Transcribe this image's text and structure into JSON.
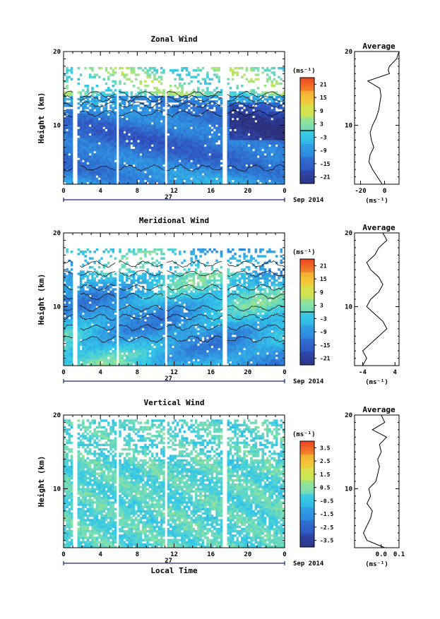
{
  "chart_data": [
    {
      "type": "heatmap",
      "title": "Zonal Wind",
      "ylabel": "Height (km)",
      "ylim": [
        2,
        20
      ],
      "y_ticks": [
        "10",
        "20"
      ],
      "xlim": [
        0,
        24
      ],
      "x_ticks": [
        "0",
        "4",
        "8",
        "12",
        "16",
        "20",
        "0"
      ],
      "date_day": "27",
      "date_month": "Sep 2014",
      "unit": "(ms⁻¹)",
      "colorbar_ticks": [
        "21",
        "15",
        "9",
        "3",
        "-3",
        "-9",
        "-15",
        "-21"
      ],
      "colorbar_range": [
        -24,
        24
      ],
      "contour_level": 0,
      "profile": {
        "title": "Average",
        "xlim": [
          -25,
          12
        ],
        "x_ticks": [
          "-20",
          "0"
        ],
        "xlabel": "(ms⁻¹)",
        "height": [
          2,
          3,
          4,
          5,
          6,
          7,
          8,
          9,
          10,
          11,
          12,
          13,
          14,
          15,
          16,
          17,
          17.5,
          18,
          19,
          20
        ],
        "value": [
          -2,
          -6,
          -10,
          -13,
          -12,
          -9,
          -11,
          -12,
          -10,
          -7,
          -5,
          -4,
          -3,
          -4,
          -14,
          4,
          3,
          4,
          10,
          12
        ]
      }
    },
    {
      "type": "heatmap",
      "title": "Meridional Wind",
      "ylabel": "Height (km)",
      "ylim": [
        2,
        20
      ],
      "y_ticks": [
        "10",
        "20"
      ],
      "xlim": [
        0,
        24
      ],
      "x_ticks": [
        "0",
        "4",
        "8",
        "12",
        "16",
        "20",
        "0"
      ],
      "date_day": "27",
      "date_month": "Sep 2014",
      "unit": "(ms⁻¹)",
      "colorbar_ticks": [
        "21",
        "15",
        "9",
        "3",
        "-3",
        "-9",
        "-15",
        "-21"
      ],
      "colorbar_range": [
        -24,
        24
      ],
      "contour_level": 0,
      "profile": {
        "title": "Average",
        "xlim": [
          -6,
          5
        ],
        "x_ticks": [
          "-4",
          "4"
        ],
        "xlabel": "(ms⁻¹)",
        "height": [
          2,
          3,
          4,
          5,
          6,
          7,
          8,
          9,
          10,
          11,
          12,
          13,
          14,
          15,
          16,
          17,
          18,
          19,
          20
        ],
        "value": [
          -4,
          -3,
          -4,
          -2,
          0,
          2,
          1,
          -1,
          -3,
          -2,
          0,
          1,
          0,
          -2,
          -3,
          -1,
          0,
          2,
          1
        ]
      }
    },
    {
      "type": "heatmap",
      "title": "Vertical Wind",
      "ylabel": "Height (km)",
      "ylim": [
        2,
        20
      ],
      "y_ticks": [
        "10",
        "20"
      ],
      "xlim": [
        0,
        24
      ],
      "x_ticks": [
        "0",
        "4",
        "8",
        "12",
        "16",
        "20",
        "0"
      ],
      "date_day": "27",
      "date_month": "Sep 2014",
      "xlabel": "Local Time",
      "unit": "(ms⁻¹)",
      "colorbar_ticks": [
        "3.5",
        "2.5",
        "1.5",
        "0.5",
        "-0.5",
        "-1.5",
        "-2.5",
        "-3.5"
      ],
      "colorbar_range": [
        -4,
        4
      ],
      "profile": {
        "title": "Average",
        "xlim": [
          -0.15,
          0.1
        ],
        "x_ticks": [
          "0.0",
          "0.1"
        ],
        "xlabel": "(ms⁻¹)",
        "height": [
          2,
          3,
          4,
          5,
          6,
          7,
          8,
          9,
          10,
          11,
          12,
          13,
          14,
          15,
          16,
          17,
          18,
          19,
          20
        ],
        "value": [
          0.02,
          -0.08,
          -0.1,
          -0.08,
          -0.06,
          -0.05,
          -0.08,
          -0.06,
          -0.07,
          -0.03,
          -0.02,
          -0.01,
          -0.02,
          0.0,
          -0.01,
          0.03,
          -0.05,
          0.02,
          0.0
        ]
      }
    }
  ]
}
